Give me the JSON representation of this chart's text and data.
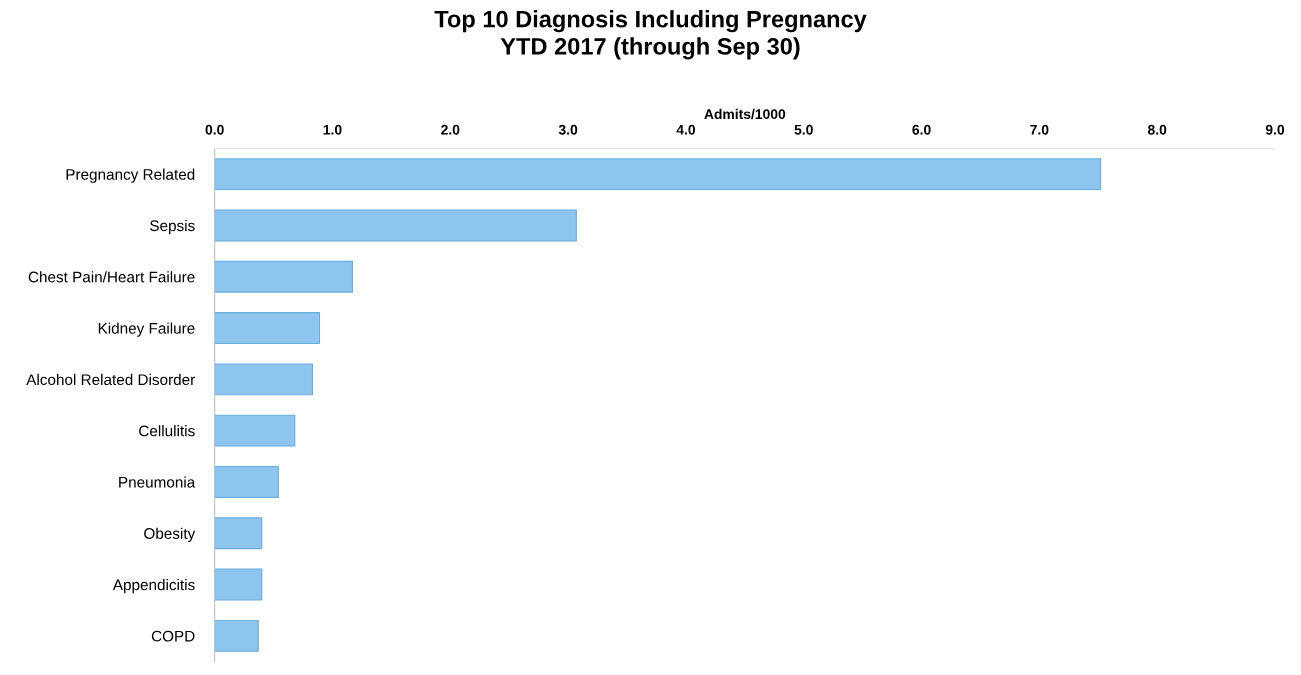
{
  "chart_data": {
    "type": "bar",
    "orientation": "horizontal",
    "title": "Top 10 Diagnosis Including Pregnancy\nYTD 2017 (through Sep 30)",
    "xlabel": "Admits/1000",
    "categories": [
      "Pregnancy Related",
      "Sepsis",
      "Chest Pain/Heart Failure",
      "Kidney Failure",
      "Alcohol Related Disorder",
      "Cellulitis",
      "Pneumonia",
      "Obesity",
      "Appendicitis",
      "COPD"
    ],
    "values": [
      7.52,
      3.07,
      1.17,
      0.89,
      0.83,
      0.68,
      0.54,
      0.4,
      0.4,
      0.37
    ],
    "color": "#8ec5ef",
    "xlim": [
      0,
      9
    ],
    "xticks": [
      {
        "value": 0,
        "label": "0.0"
      },
      {
        "value": 1,
        "label": "1.0"
      },
      {
        "value": 2,
        "label": "2.0"
      },
      {
        "value": 3,
        "label": "3.0"
      },
      {
        "value": 4,
        "label": "4.0"
      },
      {
        "value": 5,
        "label": "5.0"
      },
      {
        "value": 6,
        "label": "6.0"
      },
      {
        "value": 7,
        "label": "7.0"
      },
      {
        "value": 8,
        "label": "8.0"
      },
      {
        "value": 9,
        "label": "9.0"
      }
    ],
    "grid": false
  }
}
